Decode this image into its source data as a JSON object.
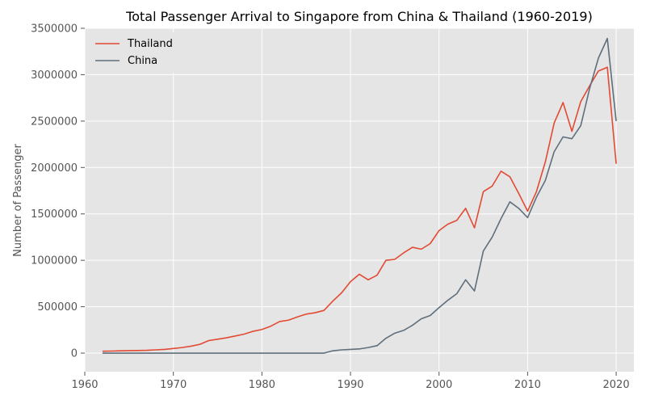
{
  "chart_data": {
    "type": "line",
    "title": "Total Passenger Arrival to Singapore from China & Thailand (1960-2019)",
    "xlabel": "",
    "ylabel": "Number of Passenger",
    "xlim": [
      1960,
      2022
    ],
    "ylim": [
      -200000,
      3500000
    ],
    "x_ticks": [
      1960,
      1970,
      1980,
      1990,
      2000,
      2010,
      2020
    ],
    "y_ticks": [
      0,
      500000,
      1000000,
      1500000,
      2000000,
      2500000,
      3000000,
      3500000
    ],
    "x_tick_labels": [
      "1960",
      "1970",
      "1980",
      "1990",
      "2000",
      "2010",
      "2020"
    ],
    "y_tick_labels": [
      "0",
      "500000",
      "1000000",
      "1500000",
      "2000000",
      "2500000",
      "3000000",
      "3500000"
    ],
    "grid": true,
    "legend_position": "top-left",
    "series": [
      {
        "name": "Thailand",
        "color": "#E24A33",
        "x": [
          1962,
          1963,
          1964,
          1965,
          1966,
          1967,
          1968,
          1969,
          1970,
          1971,
          1972,
          1973,
          1974,
          1975,
          1976,
          1977,
          1978,
          1979,
          1980,
          1981,
          1982,
          1983,
          1984,
          1985,
          1986,
          1987,
          1988,
          1989,
          1990,
          1991,
          1992,
          1993,
          1994,
          1995,
          1996,
          1997,
          1998,
          1999,
          2000,
          2001,
          2002,
          2003,
          2004,
          2005,
          2006,
          2007,
          2008,
          2009,
          2010,
          2011,
          2012,
          2013,
          2014,
          2015,
          2016,
          2017,
          2018,
          2019,
          2020
        ],
        "values": [
          20000,
          22000,
          25000,
          27000,
          28000,
          30000,
          35000,
          40000,
          50000,
          60000,
          75000,
          95000,
          135000,
          150000,
          165000,
          185000,
          205000,
          235000,
          255000,
          290000,
          340000,
          355000,
          390000,
          420000,
          435000,
          460000,
          560000,
          650000,
          770000,
          850000,
          790000,
          840000,
          1000000,
          1010000,
          1080000,
          1140000,
          1120000,
          1180000,
          1320000,
          1390000,
          1430000,
          1560000,
          1350000,
          1740000,
          1800000,
          1960000,
          1900000,
          1720000,
          1530000,
          1740000,
          2060000,
          2480000,
          2700000,
          2390000,
          2710000,
          2880000,
          3040000,
          3080000,
          2040000
        ]
      },
      {
        "name": "China",
        "color": "#5F6F7C",
        "x": [
          1962,
          1963,
          1964,
          1965,
          1966,
          1967,
          1968,
          1969,
          1970,
          1971,
          1972,
          1973,
          1974,
          1975,
          1976,
          1977,
          1978,
          1979,
          1980,
          1981,
          1982,
          1983,
          1984,
          1985,
          1986,
          1987,
          1988,
          1989,
          1990,
          1991,
          1992,
          1993,
          1994,
          1995,
          1996,
          1997,
          1998,
          1999,
          2000,
          2001,
          2002,
          2003,
          2004,
          2005,
          2006,
          2007,
          2008,
          2009,
          2010,
          2011,
          2012,
          2013,
          2014,
          2015,
          2016,
          2017,
          2018,
          2019,
          2020
        ],
        "values": [
          0,
          0,
          0,
          0,
          0,
          0,
          0,
          0,
          0,
          0,
          0,
          0,
          0,
          0,
          0,
          0,
          0,
          0,
          0,
          0,
          0,
          0,
          0,
          0,
          0,
          0,
          25000,
          35000,
          40000,
          45000,
          60000,
          80000,
          160000,
          215000,
          245000,
          300000,
          370000,
          405000,
          490000,
          570000,
          640000,
          790000,
          670000,
          1100000,
          1250000,
          1450000,
          1630000,
          1560000,
          1460000,
          1680000,
          1860000,
          2170000,
          2330000,
          2310000,
          2450000,
          2850000,
          3180000,
          3390000,
          2500000
        ]
      }
    ]
  }
}
